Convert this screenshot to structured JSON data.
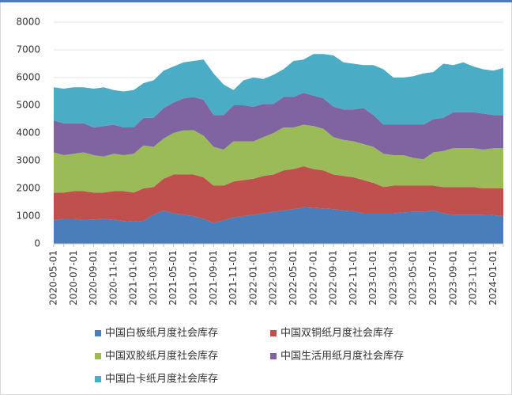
{
  "chart_data": {
    "type": "stacked_area",
    "categories": [
      "2020-05-01",
      null,
      "2020-07-01",
      null,
      "2020-09-01",
      null,
      "2020-11-01",
      null,
      "2021-01-01",
      null,
      "2021-03-01",
      null,
      "2021-05-01",
      null,
      "2021-07-01",
      null,
      "2021-09-01",
      null,
      "2021-11-01",
      null,
      "2022-01-01",
      null,
      "2022-03-01",
      null,
      "2022-05-01",
      null,
      "2022-07-01",
      null,
      "2022-09-01",
      null,
      "2022-11-01",
      null,
      "2023-01-01",
      null,
      "2023-03-01",
      null,
      "2023-05-01",
      null,
      "2023-07-01",
      null,
      "2023-09-01",
      null,
      "2023-11-01",
      null,
      "2024-01-01",
      null
    ],
    "series": [
      {
        "name": "中国白板纸月度社会库存",
        "color": "#4a7ebb",
        "values": [
          850,
          900,
          900,
          870,
          880,
          900,
          870,
          820,
          800,
          830,
          1050,
          1200,
          1100,
          1050,
          1000,
          900,
          750,
          850,
          950,
          1000,
          1050,
          1100,
          1150,
          1200,
          1250,
          1320,
          1300,
          1280,
          1250,
          1200,
          1180,
          1100,
          1100,
          1100,
          1100,
          1130,
          1150,
          1150,
          1200,
          1100,
          1050,
          1050,
          1050,
          1050,
          1030,
          1000
        ]
      },
      {
        "name": "中国双铜纸月度社会库存",
        "color": "#c0504d",
        "values": [
          1000,
          950,
          1000,
          1030,
          970,
          950,
          1030,
          1080,
          1050,
          1170,
          1000,
          1150,
          1400,
          1450,
          1500,
          1500,
          1350,
          1250,
          1300,
          1300,
          1300,
          1350,
          1350,
          1450,
          1450,
          1480,
          1400,
          1370,
          1250,
          1250,
          1220,
          1200,
          1100,
          950,
          1000,
          970,
          950,
          950,
          900,
          950,
          1000,
          1000,
          1000,
          950,
          970,
          1000
        ]
      },
      {
        "name": "中国双胶纸月度社会库存",
        "color": "#9bbb59",
        "values": [
          1450,
          1350,
          1350,
          1400,
          1350,
          1300,
          1350,
          1300,
          1400,
          1550,
          1450,
          1450,
          1500,
          1600,
          1600,
          1500,
          1400,
          1300,
          1450,
          1400,
          1350,
          1400,
          1500,
          1550,
          1500,
          1500,
          1550,
          1500,
          1350,
          1300,
          1300,
          1300,
          1300,
          1200,
          1100,
          1100,
          1000,
          950,
          1200,
          1300,
          1400,
          1400,
          1400,
          1400,
          1450,
          1450
        ]
      },
      {
        "name": "中国生活用纸月度社会库存",
        "color": "#8064a2",
        "values": [
          1150,
          1150,
          1100,
          1050,
          1000,
          1100,
          1050,
          1000,
          950,
          1000,
          1050,
          1100,
          1100,
          1150,
          1200,
          1300,
          1150,
          1250,
          1300,
          1300,
          1250,
          1200,
          1050,
          1100,
          1100,
          1150,
          1100,
          1100,
          1100,
          1100,
          1150,
          1300,
          1150,
          1050,
          1100,
          1100,
          1200,
          1250,
          1200,
          1200,
          1300,
          1300,
          1300,
          1300,
          1200,
          1200
        ]
      },
      {
        "name": "中国白卡纸月度社会库存",
        "color": "#4bacc6",
        "values": [
          1200,
          1250,
          1300,
          1300,
          1400,
          1400,
          1250,
          1300,
          1350,
          1250,
          1350,
          1350,
          1300,
          1300,
          1300,
          1450,
          1500,
          1100,
          550,
          900,
          1050,
          900,
          1050,
          1000,
          1300,
          1200,
          1500,
          1600,
          1850,
          1700,
          1650,
          1550,
          1800,
          2000,
          1700,
          1700,
          1750,
          1850,
          1700,
          1950,
          1700,
          1800,
          1650,
          1600,
          1600,
          1700
        ]
      }
    ],
    "ylim": [
      0,
      8000
    ],
    "yticks": [
      0,
      1000,
      2000,
      3000,
      4000,
      5000,
      6000,
      7000,
      8000
    ],
    "grid": true
  }
}
